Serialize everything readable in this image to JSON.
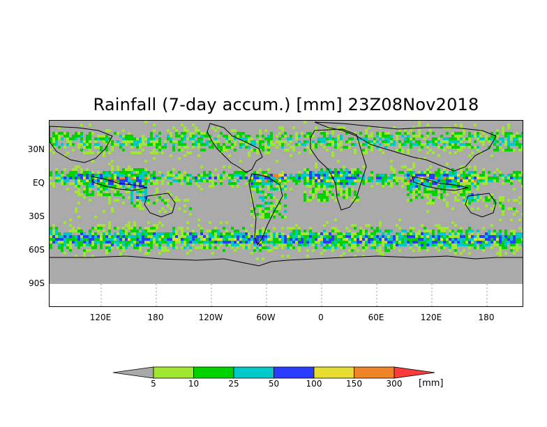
{
  "title": "Rainfall (7-day accum.) [mm] 23Z08Nov2018",
  "y_axis": {
    "labels": [
      {
        "text": "30N",
        "lat": 30
      },
      {
        "text": "EQ",
        "lat": 0
      },
      {
        "text": "30S",
        "lat": -30
      },
      {
        "text": "60S",
        "lat": -60
      },
      {
        "text": "90S",
        "lat": -90
      }
    ]
  },
  "x_axis": {
    "labels": [
      {
        "text": "120E",
        "lon": 120
      },
      {
        "text": "180",
        "lon": 180
      },
      {
        "text": "120W",
        "lon": 240
      },
      {
        "text": "60W",
        "lon": 300
      },
      {
        "text": "0",
        "lon": 360
      },
      {
        "text": "60E",
        "lon": 420
      },
      {
        "text": "120E",
        "lon": 480
      },
      {
        "text": "180",
        "lon": 540
      }
    ]
  },
  "colorbar": {
    "unit": "[mm]",
    "levels": [
      "5",
      "10",
      "25",
      "50",
      "100",
      "150",
      "300"
    ],
    "colors": [
      "#a9a9a9",
      "#a0e632",
      "#00d200",
      "#00c8c8",
      "#2a3cff",
      "#e6dc32",
      "#f08228",
      "#fa3c3c"
    ]
  },
  "map": {
    "background_color": "#aaaaaa",
    "missing_color": "#ffffff",
    "border_color": "#000000"
  }
}
